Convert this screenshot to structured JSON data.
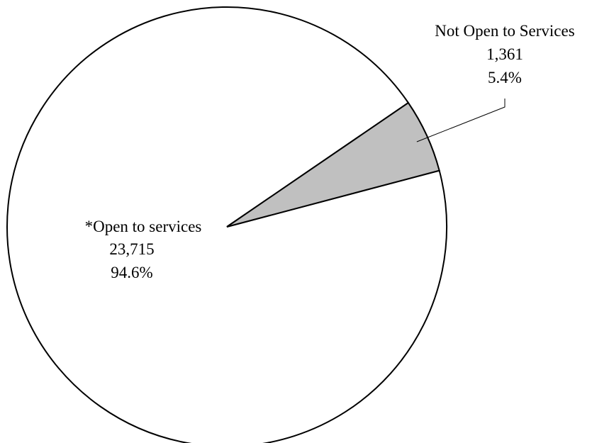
{
  "chart_data": {
    "type": "pie",
    "slices": [
      {
        "label": "*Open to services",
        "value": 23715,
        "value_text": "23,715",
        "percent_text": "94.6%",
        "color": "#ffffff"
      },
      {
        "label": "Not Open to Services",
        "value": 1361,
        "value_text": "1,361",
        "percent_text": "5.4%",
        "color": "#c0c0c0"
      }
    ],
    "legend": "none"
  }
}
